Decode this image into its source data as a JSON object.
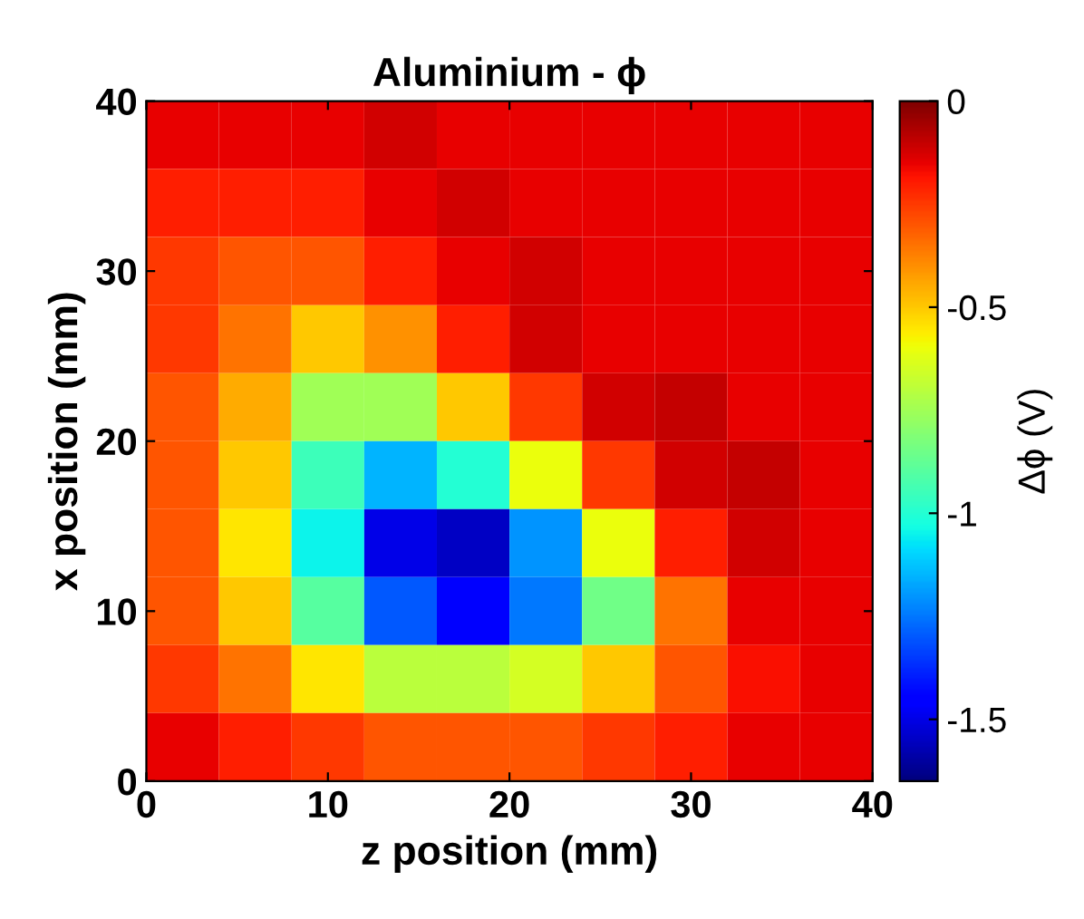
{
  "chart_data": {
    "type": "heatmap",
    "title": "Aluminium - ϕ",
    "xlabel": "z position (mm)",
    "ylabel": "x position (mm)",
    "clabel": "Δϕ (V)",
    "x": [
      2,
      6,
      10,
      14,
      18,
      22,
      26,
      30,
      34,
      38
    ],
    "y": [
      38,
      34,
      30,
      26,
      22,
      18,
      14,
      10,
      6,
      2
    ],
    "cells": [
      [
        -0.15,
        -0.15,
        -0.15,
        -0.12,
        -0.15,
        -0.15,
        -0.15,
        -0.15,
        -0.15,
        -0.15
      ],
      [
        -0.2,
        -0.2,
        -0.2,
        -0.15,
        -0.12,
        -0.15,
        -0.15,
        -0.15,
        -0.15,
        -0.15
      ],
      [
        -0.25,
        -0.3,
        -0.3,
        -0.2,
        -0.15,
        -0.12,
        -0.15,
        -0.15,
        -0.15,
        -0.15
      ],
      [
        -0.25,
        -0.35,
        -0.5,
        -0.4,
        -0.2,
        -0.12,
        -0.15,
        -0.15,
        -0.15,
        -0.15
      ],
      [
        -0.3,
        -0.45,
        -0.75,
        -0.75,
        -0.5,
        -0.25,
        -0.12,
        -0.1,
        -0.15,
        -0.15
      ],
      [
        -0.3,
        -0.5,
        -0.95,
        -1.15,
        -1.0,
        -0.6,
        -0.25,
        -0.12,
        -0.1,
        -0.15
      ],
      [
        -0.3,
        -0.55,
        -1.05,
        -1.5,
        -1.55,
        -1.2,
        -0.6,
        -0.2,
        -0.12,
        -0.15
      ],
      [
        -0.3,
        -0.5,
        -0.9,
        -1.3,
        -1.45,
        -1.25,
        -0.85,
        -0.35,
        -0.15,
        -0.15
      ],
      [
        -0.25,
        -0.35,
        -0.55,
        -0.7,
        -0.7,
        -0.65,
        -0.5,
        -0.3,
        -0.18,
        -0.15
      ],
      [
        -0.15,
        -0.2,
        -0.25,
        -0.3,
        -0.3,
        -0.3,
        -0.25,
        -0.2,
        -0.15,
        -0.15
      ]
    ],
    "xlim": [
      0,
      40
    ],
    "ylim": [
      0,
      40
    ],
    "xticks": [
      0,
      10,
      20,
      30,
      40
    ],
    "yticks": [
      0,
      10,
      20,
      30,
      40
    ],
    "clim": [
      -1.65,
      0
    ],
    "cticks": [
      -1.5,
      -1,
      -0.5,
      0
    ]
  }
}
